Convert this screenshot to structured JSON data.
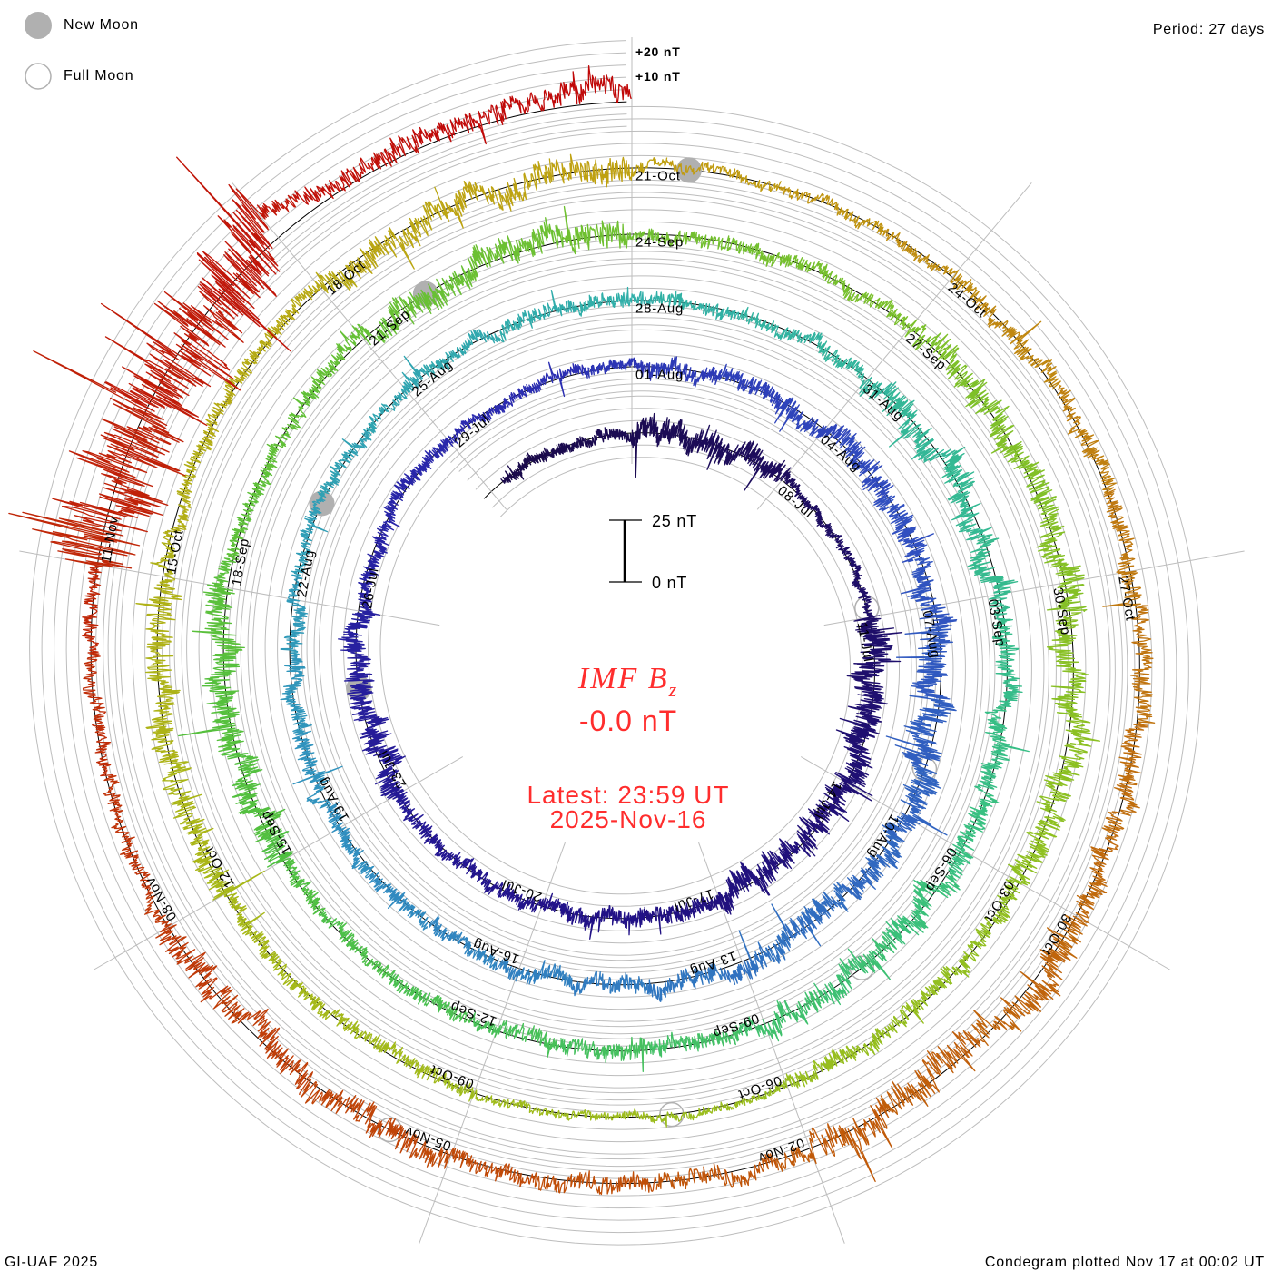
{
  "legend": {
    "new_moon": "New Moon",
    "full_moon": "Full Moon"
  },
  "period": "Period: 27 days",
  "footer": {
    "left": "GI-UAF 2025",
    "right": "Condegram plotted Nov 17 at 00:02 UT"
  },
  "chart_data": {
    "type": "line",
    "subtype": "condegram-spiral",
    "title": "IMF B",
    "title_subscript": "z",
    "current_value": "-0.0 nT",
    "latest_time": "Latest: 23:59 UT",
    "latest_date": "2025-Nov-16",
    "period_days": 27,
    "start_date": "2025-07-02",
    "end_date": "2025-11-16",
    "gridline_labels": [
      "+20 nT",
      "+10 nT"
    ],
    "scale_bar": {
      "top": "25 nT",
      "bottom": "0 nT",
      "value_nT": 25
    },
    "date_labels": [
      "08-Jul",
      "11-Jul",
      "14-Jul",
      "17-Jul",
      "20-Jul",
      "23-Jul",
      "26-Jul",
      "29-Jul",
      "01-Aug",
      "04-Aug",
      "07-Aug",
      "10-Aug",
      "13-Aug",
      "16-Aug",
      "19-Aug",
      "22-Aug",
      "25-Aug",
      "28-Aug",
      "31-Aug",
      "03-Sep",
      "06-Sep",
      "09-Sep",
      "12-Sep",
      "15-Sep",
      "18-Sep",
      "21-Sep",
      "24-Sep",
      "27-Sep",
      "30-Sep",
      "03-Oct",
      "06-Oct",
      "09-Oct",
      "12-Oct",
      "15-Oct",
      "18-Oct",
      "21-Oct",
      "24-Oct",
      "27-Oct",
      "30-Oct",
      "02-Nov",
      "05-Nov",
      "08-Nov",
      "11-Nov"
    ],
    "new_moons": [
      "2025-07-24T19:00",
      "2025-08-23T06:00",
      "2025-09-21T19:00",
      "2025-10-21T12:00"
    ],
    "full_moons": [
      "2025-07-10T20:00",
      "2025-08-09T07:00",
      "2025-09-07T18:00",
      "2025-10-07T03:00",
      "2025-11-05T13:00"
    ],
    "bz_block_days": 3,
    "bz_block_start_dates": [
      "Jul-02",
      "Jul-05",
      "Jul-08",
      "Jul-11",
      "Jul-14",
      "Jul-17",
      "Jul-20",
      "Jul-23",
      "Jul-26",
      "Jul-29",
      "Aug-01",
      "Aug-04",
      "Aug-07",
      "Aug-10",
      "Aug-13",
      "Aug-16",
      "Aug-19",
      "Aug-22",
      "Aug-25",
      "Aug-28",
      "Aug-31",
      "Sep-03",
      "Sep-06",
      "Sep-09",
      "Sep-12",
      "Sep-15",
      "Sep-18",
      "Sep-21",
      "Sep-24",
      "Sep-27",
      "Sep-30",
      "Oct-03",
      "Oct-06",
      "Oct-09",
      "Oct-12",
      "Oct-15",
      "Oct-18",
      "Oct-21",
      "Oct-24",
      "Oct-27",
      "Oct-30",
      "Nov-02",
      "Nov-05",
      "Nov-08",
      "Nov-11",
      "Nov-14"
    ],
    "bz_amplitude_nT": [
      4,
      8,
      3,
      10,
      9,
      6,
      5,
      9,
      5,
      4,
      6,
      8,
      11,
      8,
      6,
      5,
      6,
      4,
      5,
      5,
      9,
      7,
      9,
      6,
      5,
      10,
      5,
      9,
      5,
      9,
      9,
      6,
      3,
      5,
      9,
      5,
      9,
      4,
      6,
      7,
      11,
      6,
      9,
      5,
      30,
      7
    ],
    "bz_mean_nT": [
      0,
      0,
      0,
      0,
      0,
      0,
      0,
      0,
      0,
      0,
      0,
      0,
      0,
      0,
      0,
      0,
      0,
      0,
      0,
      0,
      0,
      0,
      0,
      0,
      0,
      0,
      0,
      0,
      0,
      0,
      0,
      0,
      0,
      0,
      0,
      0,
      0,
      0,
      0,
      0,
      0,
      0,
      0,
      0,
      0,
      4
    ],
    "color_stops": [
      {
        "date": "2025-07-02",
        "color": "#1a0a48"
      },
      {
        "date": "2025-07-20",
        "color": "#22128a"
      },
      {
        "date": "2025-07-30",
        "color": "#2a2ab0"
      },
      {
        "date": "2025-08-06",
        "color": "#3050c0"
      },
      {
        "date": "2025-08-19",
        "color": "#3090c0"
      },
      {
        "date": "2025-08-28",
        "color": "#30b0a8"
      },
      {
        "date": "2025-09-06",
        "color": "#38c080"
      },
      {
        "date": "2025-09-15",
        "color": "#50c040"
      },
      {
        "date": "2025-09-24",
        "color": "#70c030"
      },
      {
        "date": "2025-10-03",
        "color": "#90c020"
      },
      {
        "date": "2025-10-12",
        "color": "#a8b818"
      },
      {
        "date": "2025-10-21",
        "color": "#c0a010"
      },
      {
        "date": "2025-10-27",
        "color": "#c07810"
      },
      {
        "date": "2025-11-02",
        "color": "#c05808"
      },
      {
        "date": "2025-11-08",
        "color": "#c03808"
      },
      {
        "date": "2025-11-16",
        "color": "#c00808"
      }
    ]
  }
}
